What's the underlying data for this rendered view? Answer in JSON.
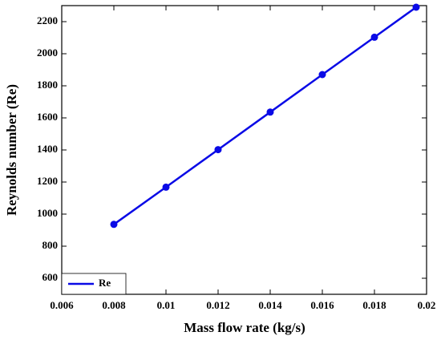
{
  "chart_data": {
    "type": "line",
    "x_label": "Mass flow rate (kg/s)",
    "y_label": "Reynolds number (Re)",
    "x": [
      0.008,
      0.01,
      0.012,
      0.014,
      0.016,
      0.018,
      0.0196
    ],
    "series": [
      {
        "name": "Re",
        "color": "#0a0ae6",
        "values": [
          936,
          1168,
          1402,
          1636,
          1870,
          2103,
          2290
        ]
      }
    ],
    "xlim": [
      0.006,
      0.02
    ],
    "xticks": [
      0.006,
      0.008,
      0.01,
      0.012,
      0.014,
      0.016,
      0.018,
      0.02
    ],
    "ylim": [
      500,
      2300
    ],
    "yticks": [
      600,
      800,
      1000,
      1200,
      1400,
      1600,
      1800,
      2000,
      2200
    ],
    "grid": false,
    "legend": "lower left",
    "markers": true
  }
}
